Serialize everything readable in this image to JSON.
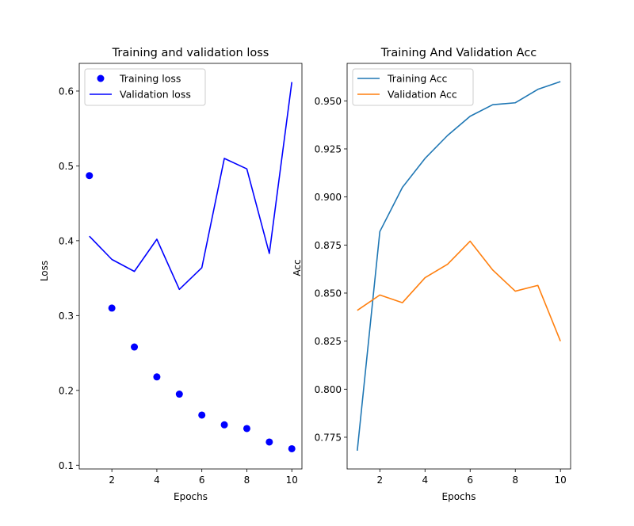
{
  "chart_data": [
    {
      "type": "line",
      "title": "Training and validation loss",
      "xlabel": "Epochs",
      "ylabel": "Loss",
      "xlim": [
        0.55,
        10.45
      ],
      "ylim": [
        0.095,
        0.637
      ],
      "xticks": [
        2,
        4,
        6,
        8,
        10
      ],
      "yticks": [
        0.1,
        0.2,
        0.3,
        0.4,
        0.5,
        0.6
      ],
      "ytick_format": 1,
      "legend_position": "top-left",
      "x": [
        1,
        2,
        3,
        4,
        5,
        6,
        7,
        8,
        9,
        10
      ],
      "series": [
        {
          "name": "Training loss",
          "style": "points",
          "color": "#0000ff",
          "values": [
            0.487,
            0.31,
            0.258,
            0.218,
            0.195,
            0.167,
            0.154,
            0.149,
            0.131,
            0.122
          ]
        },
        {
          "name": "Validation loss",
          "style": "line",
          "color": "#0000ff",
          "values": [
            0.406,
            0.375,
            0.359,
            0.402,
            0.335,
            0.364,
            0.51,
            0.496,
            0.383,
            0.612
          ]
        }
      ]
    },
    {
      "type": "line",
      "title": "Training And Validation Acc",
      "xlabel": "Epochs",
      "ylabel": "Acc",
      "xlim": [
        0.55,
        10.45
      ],
      "ylim": [
        0.7585,
        0.9695
      ],
      "xticks": [
        2,
        4,
        6,
        8,
        10
      ],
      "yticks": [
        0.775,
        0.8,
        0.825,
        0.85,
        0.875,
        0.9,
        0.925,
        0.95
      ],
      "ytick_format": 3,
      "legend_position": "top-left",
      "x": [
        1,
        2,
        3,
        4,
        5,
        6,
        7,
        8,
        9,
        10
      ],
      "series": [
        {
          "name": "Training Acc",
          "style": "line",
          "color": "#1f77b4",
          "values": [
            0.768,
            0.882,
            0.905,
            0.92,
            0.932,
            0.942,
            0.948,
            0.949,
            0.956,
            0.96
          ]
        },
        {
          "name": "Validation Acc",
          "style": "line",
          "color": "#ff7f0e",
          "values": [
            0.841,
            0.849,
            0.845,
            0.858,
            0.865,
            0.877,
            0.862,
            0.851,
            0.854,
            0.825
          ]
        }
      ]
    }
  ]
}
